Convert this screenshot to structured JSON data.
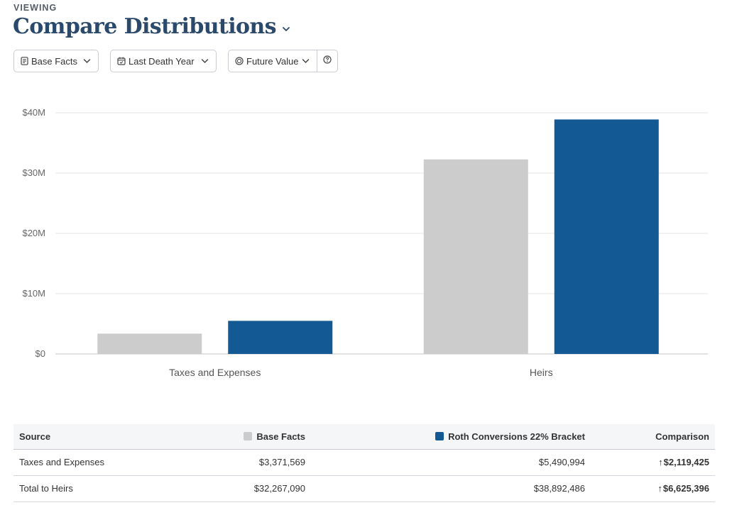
{
  "header": {
    "eyebrow": "VIEWING",
    "title": "Compare Distributions"
  },
  "toolbar": {
    "scenario": "Base Facts",
    "timing": "Last Death Year",
    "value_type": "Future Value"
  },
  "colors": {
    "base": "#cccccc",
    "roth": "#135a94",
    "negative": "#b3202a",
    "positive": "#4a7a3a"
  },
  "chart_data": {
    "type": "bar",
    "categories": [
      "Taxes and Expenses",
      "Heirs"
    ],
    "series": [
      {
        "name": "Base Facts",
        "values": [
          3371569,
          32267090
        ],
        "color": "#cccccc"
      },
      {
        "name": "Roth Conversions 22% Bracket",
        "values": [
          5490994,
          38892486
        ],
        "color": "#135a94"
      }
    ],
    "yticks": [
      "$0",
      "$10M",
      "$20M",
      "$30M",
      "$40M"
    ],
    "ylim": [
      0,
      40000000
    ],
    "title": "",
    "xlabel": "",
    "ylabel": "",
    "legend": "none"
  },
  "table": {
    "headers": {
      "source": "Source",
      "base": "Base Facts",
      "roth": "Roth Conversions 22% Bracket",
      "comparison": "Comparison"
    },
    "rows": [
      {
        "source": "Taxes and Expenses",
        "base": "$3,371,569",
        "roth": "$5,490,994",
        "comparison": "$2,119,425",
        "arrow": "↑"
      },
      {
        "source": "Total to Heirs",
        "base": "$32,267,090",
        "roth": "$38,892,486",
        "comparison": "$6,625,396",
        "arrow": "↑"
      }
    ]
  }
}
